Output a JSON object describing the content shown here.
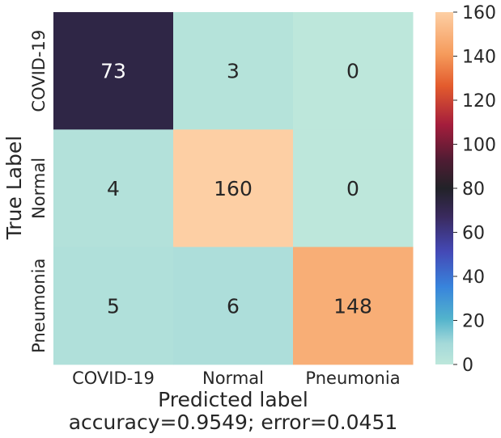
{
  "chart_data": {
    "type": "heatmap",
    "title": "",
    "xlabel": "Predicted label",
    "ylabel": "True Label",
    "footer": "accuracy=0.9549; error=0.0451",
    "x_categories": [
      "COVID-19",
      "Normal",
      "Pneumonia"
    ],
    "y_categories": [
      "COVID-19",
      "Normal",
      "Pneumonia"
    ],
    "matrix": [
      [
        73,
        3,
        0
      ],
      [
        4,
        160,
        0
      ],
      [
        5,
        6,
        148
      ]
    ],
    "colorbar": {
      "range": [
        0,
        160
      ],
      "ticks": [
        "0",
        "20",
        "40",
        "60",
        "80",
        "100",
        "120",
        "140",
        "160"
      ]
    },
    "colormap": "icefire",
    "colors": {
      "low": "#bde7db",
      "mid": "#222228",
      "high": "#fdcfa4"
    },
    "grid": false,
    "legend": "colorbar-right"
  }
}
